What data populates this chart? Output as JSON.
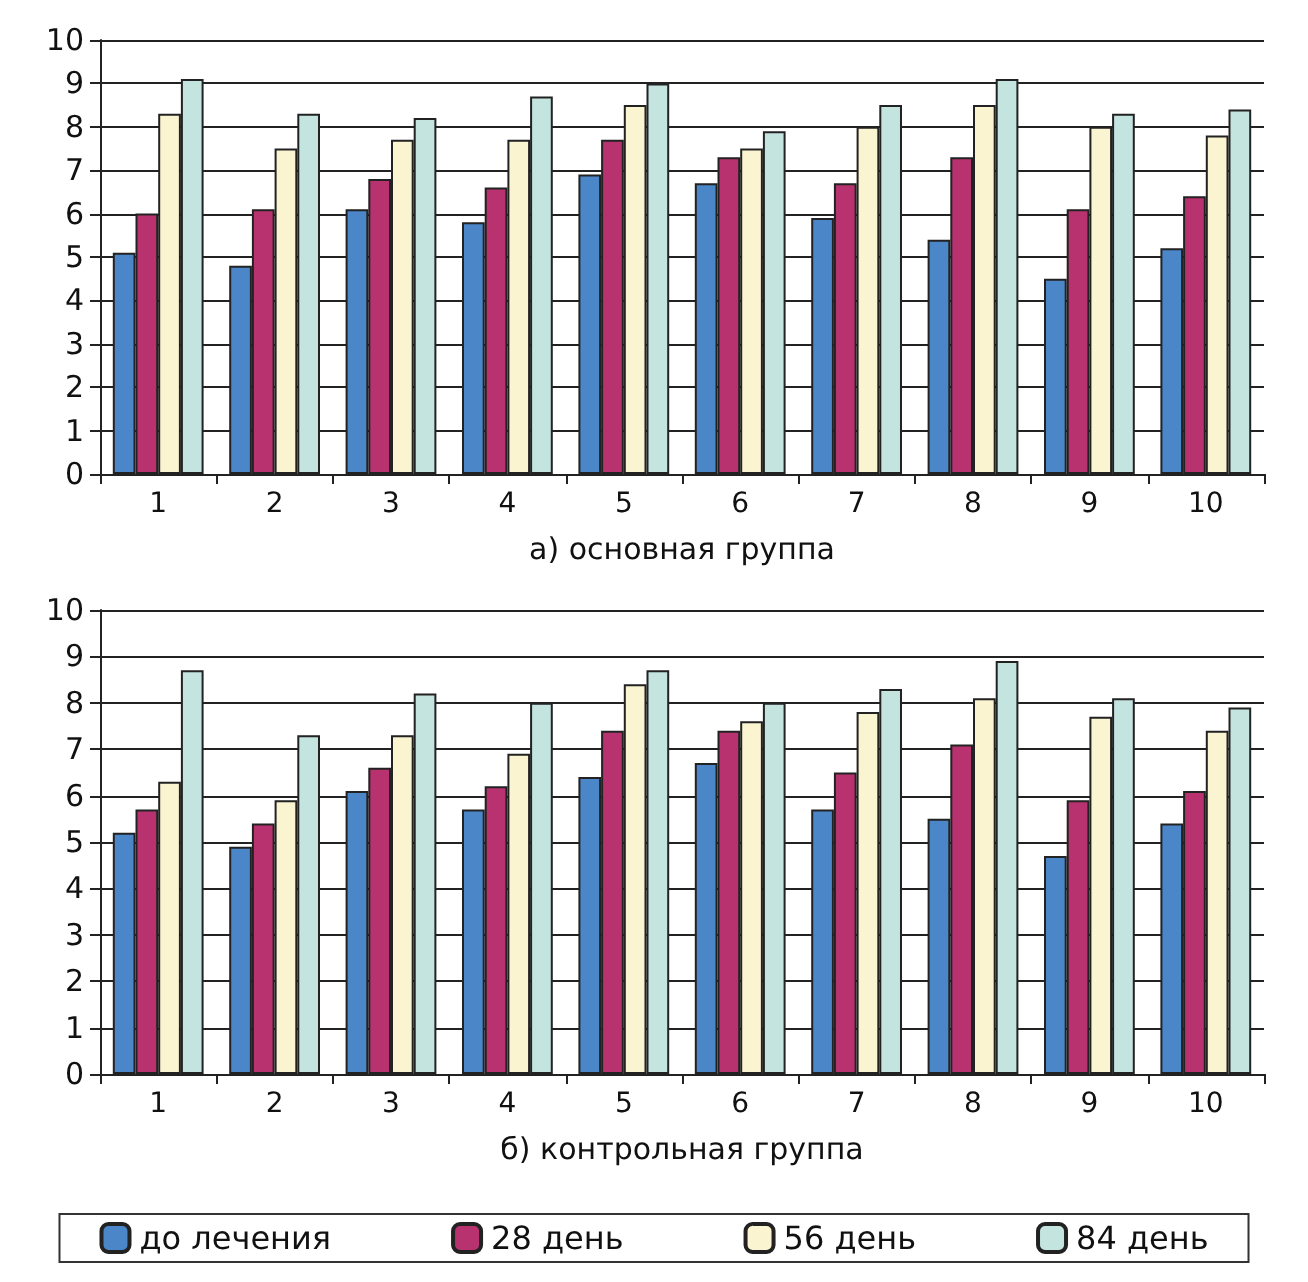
{
  "chart_data": [
    {
      "type": "bar",
      "xlabel": "а) основная группа",
      "categories": [
        "1",
        "2",
        "3",
        "4",
        "5",
        "6",
        "7",
        "8",
        "9",
        "10"
      ],
      "ylim": [
        0,
        10
      ],
      "yticks": [
        0,
        1,
        2,
        3,
        4,
        5,
        6,
        7,
        8,
        9,
        10
      ],
      "grid": "y",
      "legend": false,
      "series": [
        {
          "color": "#4a86c8",
          "values": [
            5.1,
            4.8,
            6.1,
            5.8,
            6.9,
            6.7,
            5.9,
            5.4,
            4.5,
            5.2
          ]
        },
        {
          "color": "#b83270",
          "values": [
            6.0,
            6.1,
            6.8,
            6.6,
            7.7,
            7.3,
            6.7,
            7.3,
            6.1,
            6.4
          ]
        },
        {
          "color": "#faf5d0",
          "values": [
            8.3,
            7.5,
            7.7,
            7.7,
            8.5,
            7.5,
            8.0,
            8.5,
            8.0,
            7.8
          ]
        },
        {
          "color": "#c4e4e0",
          "values": [
            9.1,
            8.3,
            8.2,
            8.7,
            9.0,
            7.9,
            8.5,
            9.1,
            8.3,
            8.4
          ]
        }
      ]
    },
    {
      "type": "bar",
      "xlabel": "б) контрольная группа",
      "categories": [
        "1",
        "2",
        "3",
        "4",
        "5",
        "6",
        "7",
        "8",
        "9",
        "10"
      ],
      "ylim": [
        0,
        10
      ],
      "yticks": [
        0,
        1,
        2,
        3,
        4,
        5,
        6,
        7,
        8,
        9,
        10
      ],
      "grid": "y",
      "legend": "bottom",
      "series": [
        {
          "name": "до лечения",
          "color": "#4a86c8",
          "values": [
            5.2,
            4.9,
            6.1,
            5.7,
            6.4,
            6.7,
            5.7,
            5.5,
            4.7,
            5.4
          ]
        },
        {
          "name": "28 день",
          "color": "#b83270",
          "values": [
            5.7,
            5.4,
            6.6,
            6.2,
            7.4,
            7.4,
            6.5,
            7.1,
            5.9,
            6.1
          ]
        },
        {
          "name": "56 день",
          "color": "#faf5d0",
          "values": [
            6.3,
            5.9,
            7.3,
            6.9,
            8.4,
            7.6,
            7.8,
            8.1,
            7.7,
            7.4
          ]
        },
        {
          "name": "84 день",
          "color": "#c4e4e0",
          "values": [
            8.7,
            7.3,
            8.2,
            8.0,
            8.7,
            8.0,
            8.3,
            8.9,
            8.1,
            7.9
          ]
        }
      ]
    }
  ]
}
